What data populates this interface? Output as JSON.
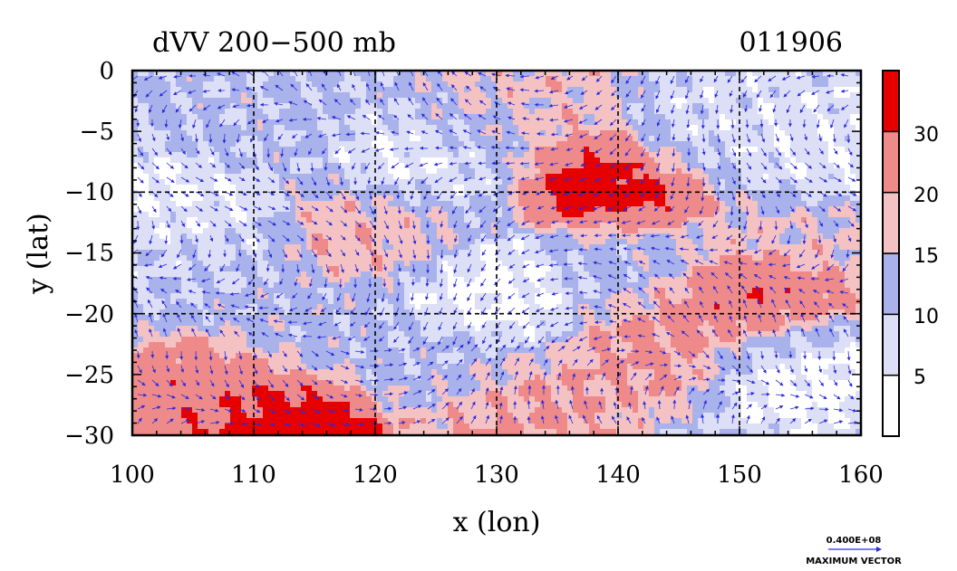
{
  "chart_data": {
    "type": "heatmap",
    "title": "dVV 200−500 mb",
    "date_label": "011906",
    "xlabel": "x (lon)",
    "ylabel": "y (lat)",
    "xlim": [
      100,
      160
    ],
    "ylim": [
      -30,
      0
    ],
    "x_ticks": [
      "100",
      "110",
      "120",
      "130",
      "140",
      "150",
      "160"
    ],
    "y_ticks": [
      "0",
      "−5",
      "−10",
      "−15",
      "−20",
      "−25",
      "−30"
    ],
    "colorbar": {
      "levels": [
        0,
        5,
        10,
        15,
        20,
        30,
        40
      ],
      "labels": [
        "5",
        "10",
        "15",
        "20",
        "30"
      ],
      "colors": [
        "#ffffff",
        "#dcdff5",
        "#a9b2ea",
        "#f4c2c2",
        "#ee8a8a",
        "#e60000"
      ]
    },
    "vector_legend": {
      "value_label": "0.400E+08",
      "caption": "MAXIMUM VECTOR"
    },
    "grid": true,
    "features": [
      {
        "lon": 112,
        "lat": -29,
        "value": 38
      },
      {
        "lon": 139,
        "lat": -9,
        "value": 36
      },
      {
        "lon": 152,
        "lat": -19.5,
        "value": 33
      },
      {
        "lon": 108,
        "lat": -27,
        "value": 25
      },
      {
        "lon": 144,
        "lat": -22,
        "value": 22
      },
      {
        "lon": 134,
        "lat": -2,
        "value": 18
      },
      {
        "lon": 121,
        "lat": -13,
        "value": 19
      },
      {
        "lon": 131,
        "lat": -28,
        "value": 21
      },
      {
        "lon": 156,
        "lat": -14,
        "value": 16
      },
      {
        "lon": 130,
        "lat": -5,
        "value": 14
      },
      {
        "lon": 115,
        "lat": -22,
        "value": 12
      },
      {
        "lon": 104,
        "lat": -14,
        "value": 11
      },
      {
        "lon": 125,
        "lat": -24,
        "value": 11
      },
      {
        "lon": 140,
        "lat": -16,
        "value": 12
      },
      {
        "lon": 110,
        "lat": -4,
        "value": 11
      },
      {
        "lon": 154,
        "lat": -23,
        "value": 2
      },
      {
        "lon": 103,
        "lat": -12,
        "value": 3
      },
      {
        "lon": 130,
        "lat": -18,
        "value": 3
      },
      {
        "lon": 125,
        "lat": -8,
        "value": 4
      },
      {
        "lon": 158,
        "lat": -7,
        "value": 6
      },
      {
        "lon": 146,
        "lat": -5,
        "value": 7
      }
    ],
    "base_value": 10
  }
}
